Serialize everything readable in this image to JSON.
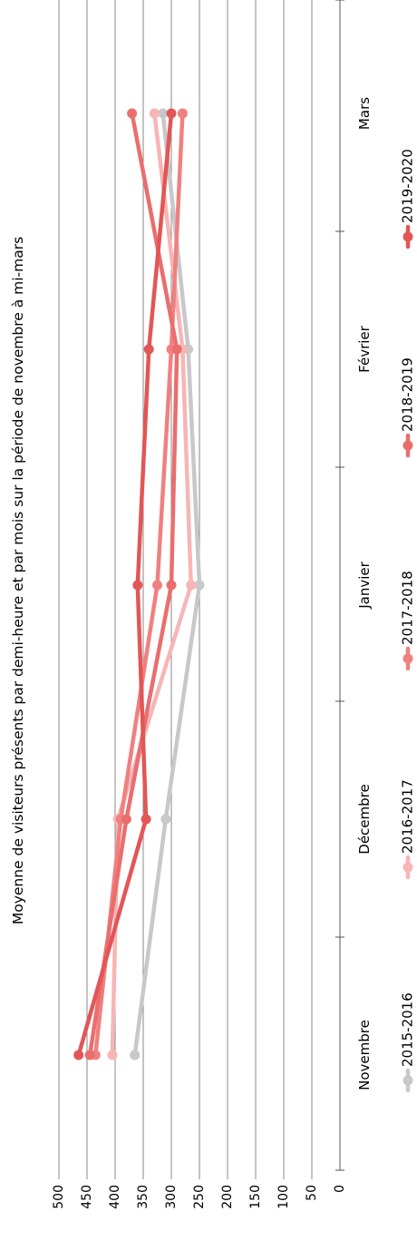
{
  "chart_data": {
    "type": "line",
    "orientation": "rotated-90",
    "title": "Moyenne de visiteurs présents par demi-heure et par mois sur la période de novembre à mi-mars",
    "categories": [
      "Novembre",
      "Décembre",
      "Janvier",
      "Février",
      "Mars"
    ],
    "ylim": [
      0,
      500
    ],
    "yticks": [
      "500",
      "450",
      "400",
      "350",
      "300",
      "250",
      "200",
      "150",
      "100",
      "50",
      "0"
    ],
    "grid": true,
    "legend_position": "bottom",
    "series": [
      {
        "name": "2015-2016",
        "color": "#c8c8c8",
        "values": [
          365,
          310,
          250,
          270,
          315
        ]
      },
      {
        "name": "2016-2017",
        "color": "#f7b5b5",
        "values": [
          405,
          395,
          265,
          280,
          330
        ]
      },
      {
        "name": "2017-2018",
        "color": "#f08080",
        "values": [
          435,
          390,
          325,
          300,
          280
        ]
      },
      {
        "name": "2018-2019",
        "color": "#ea6e6e",
        "values": [
          445,
          380,
          300,
          290,
          370
        ]
      },
      {
        "name": "2019-2020",
        "color": "#e25656",
        "values": [
          465,
          345,
          360,
          340,
          300
        ]
      }
    ]
  }
}
